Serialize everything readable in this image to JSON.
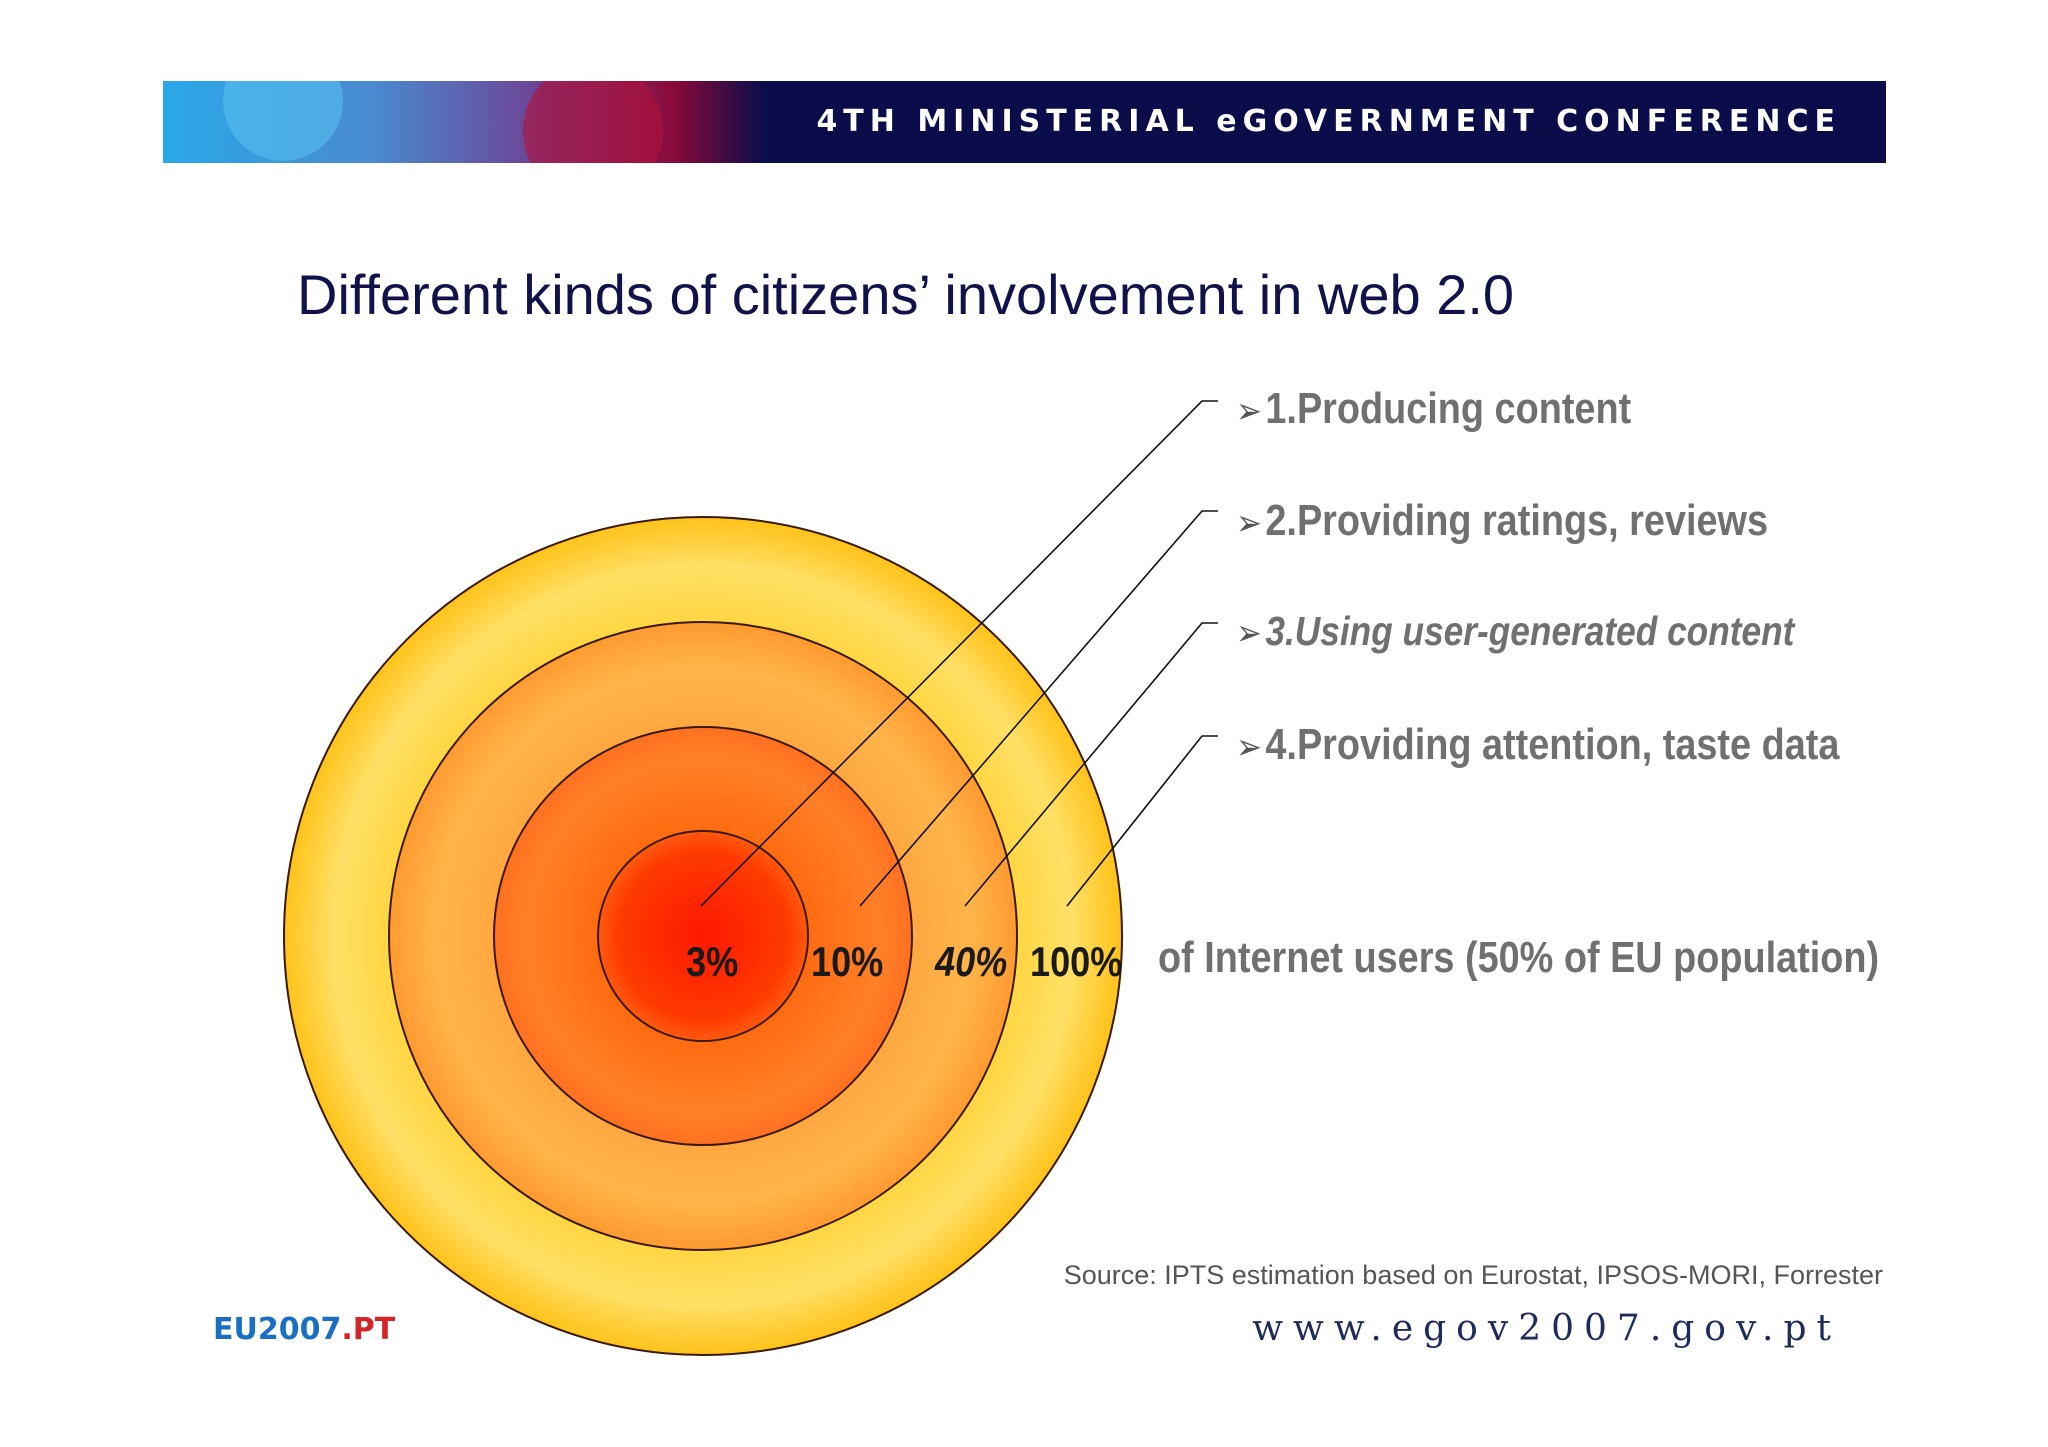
{
  "header": {
    "conference_title": "4TH MINISTERIAL eGOVERNMENT CONFERENCE"
  },
  "slide": {
    "title": "Different kinds of citizens’ involvement in web 2.0"
  },
  "levels": [
    {
      "label": "1.Producing content",
      "percent": "3%",
      "italic": false
    },
    {
      "label": "2.Providing ratings, reviews",
      "percent": "10%",
      "italic": false
    },
    {
      "label": "3.Using user-generated content",
      "percent": "40%",
      "italic": true
    },
    {
      "label": "4.Providing attention, taste data",
      "percent": "100%",
      "italic": false
    }
  ],
  "population_note": "of Internet users (50% of EU population)",
  "source": "Source: IPTS estimation based on Eurostat, IPSOS-MORI, Forrester",
  "footer": {
    "logo_main": "EU2007",
    "logo_suffix": ".PT",
    "website": "www.egov2007.gov.pt"
  },
  "colors": {
    "banner_bg": "#0b0d4a",
    "title_text": "#12124a",
    "bullet_text": "#707070",
    "ring_outer": "#ffcc22",
    "ring_2": "#ffa040",
    "ring_3": "#ff7a1a",
    "ring_core": "#ff2a00"
  }
}
